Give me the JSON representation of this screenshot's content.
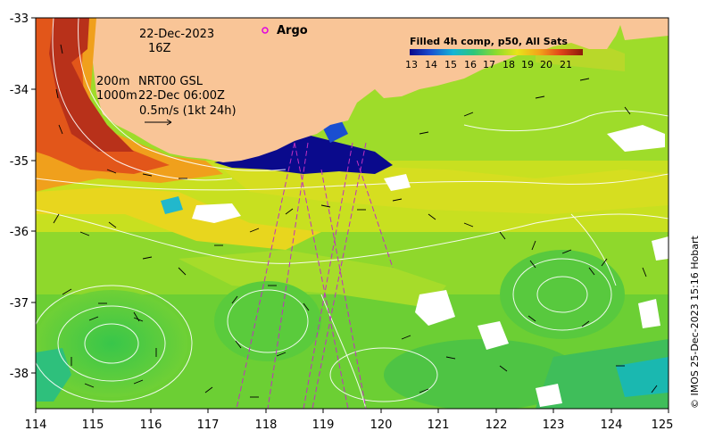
{
  "map": {
    "lon_ticks": [
      "114",
      "115",
      "116",
      "117",
      "118",
      "119",
      "120",
      "121",
      "122",
      "123",
      "124",
      "125"
    ],
    "lat_ticks": [
      "-33",
      "-34",
      "-35",
      "-36",
      "-37",
      "-38"
    ],
    "lon_range": [
      114,
      125
    ],
    "lat_range": [
      -38.5,
      -33
    ],
    "date": "22-Dec-2023",
    "hour": "16Z",
    "depth_shallow": "200m",
    "depth_deep": "1000m",
    "product": "NRT00 GSL",
    "product_time": "22-Dec 06:00Z",
    "velocity_scale": "0.5m/s (1kt 24h)",
    "argo_label": "Argo",
    "colorbar_title": "Filled 4h comp, p50, All Sats",
    "colorbar_ticks": [
      "13",
      "14",
      "15",
      "16",
      "17",
      "18",
      "19",
      "20",
      "21"
    ],
    "credit": "© IMOS 25-Dec-2023 15:16 Hobart"
  },
  "colors": {
    "land": "#f9c597",
    "argo_marker": "#e000e0",
    "track_lines": "#c030c0",
    "contours": "#ffffff",
    "scale_cold": "#0a0a8c",
    "scale_warm": "#8b1a0a"
  }
}
